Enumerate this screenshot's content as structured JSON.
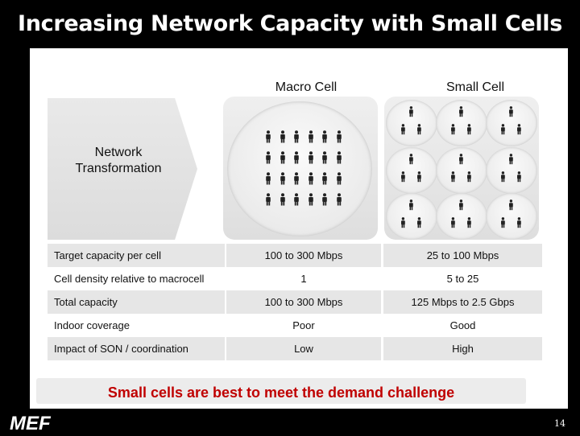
{
  "slide": {
    "title": "Increasing Network Capacity with Small Cells",
    "page_number": "14",
    "logo_text": "MEF"
  },
  "diagram": {
    "chevron_label_line1": "Network",
    "chevron_label_line2": "Transformation",
    "columns": [
      "Macro Cell",
      "Small Cell"
    ]
  },
  "table": {
    "rows": [
      {
        "label": "Target capacity per cell",
        "macro": "100 to 300 Mbps",
        "small": "25 to 100 Mbps"
      },
      {
        "label": "Cell density relative to macrocell",
        "macro": "1",
        "small": "5 to 25"
      },
      {
        "label": "Total capacity",
        "macro": "100 to 300 Mbps",
        "small": "125 Mbps to 2.5 Gbps"
      },
      {
        "label": "Indoor coverage",
        "macro": "Poor",
        "small": "Good"
      },
      {
        "label": "Impact of SON / coordination",
        "macro": "Low",
        "small": "High"
      }
    ]
  },
  "banner": {
    "text": "Small cells are best to meet the demand challenge",
    "color": "#c00000"
  }
}
